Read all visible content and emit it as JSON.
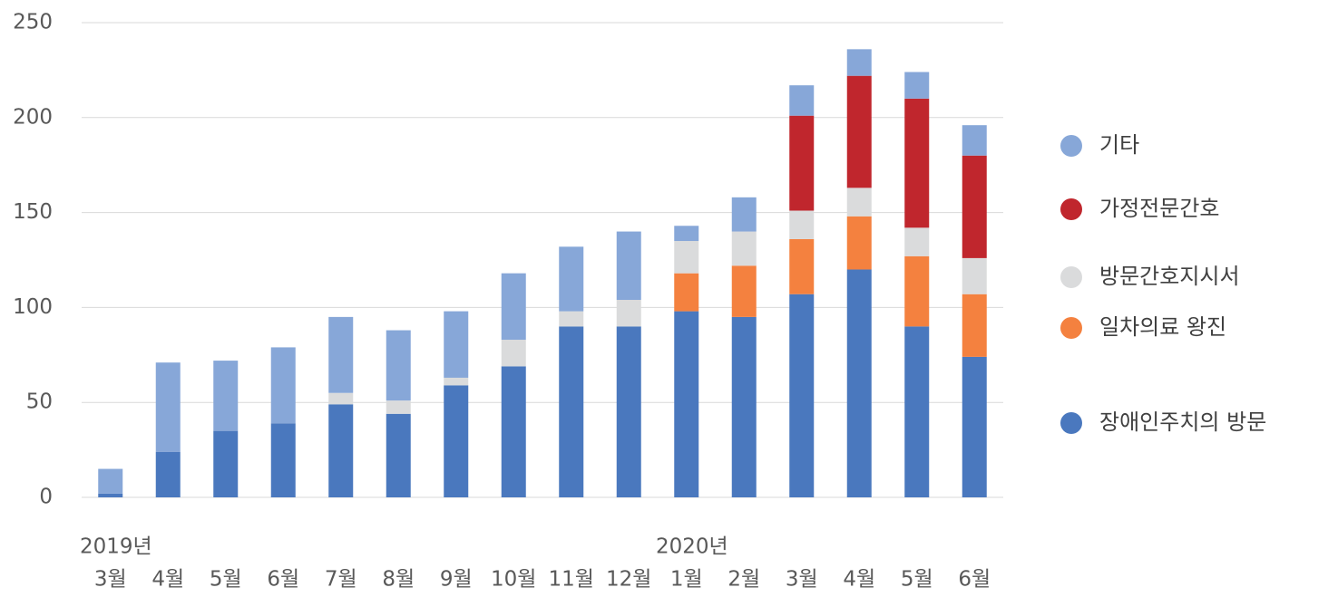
{
  "chart_data": {
    "type": "stacked_bar",
    "categories": [
      "3월",
      "4월",
      "5월",
      "6월",
      "7월",
      "8월",
      "9월",
      "10월",
      "11월",
      "12월",
      "1월",
      "2월",
      "3월",
      "4월",
      "5월",
      "6월"
    ],
    "year_labels": [
      "2019년",
      null,
      null,
      null,
      null,
      null,
      null,
      null,
      null,
      null,
      "2020년",
      null,
      null,
      null,
      null,
      null
    ],
    "series": [
      {
        "name": "장애인주치의 방문",
        "color": "#4a78be",
        "values": [
          2,
          24,
          35,
          39,
          49,
          44,
          59,
          69,
          90,
          90,
          98,
          95,
          107,
          120,
          90,
          74
        ]
      },
      {
        "name": "일차의료 왕진",
        "color": "#f4813f",
        "values": [
          0,
          0,
          0,
          0,
          0,
          0,
          0,
          0,
          0,
          0,
          20,
          27,
          29,
          28,
          37,
          33
        ]
      },
      {
        "name": "방문간호지시서",
        "color": "#dadbdc",
        "values": [
          0,
          0,
          0,
          0,
          6,
          7,
          4,
          14,
          8,
          14,
          17,
          18,
          15,
          15,
          15,
          19
        ]
      },
      {
        "name": "가정전문간호",
        "color": "#c0262d",
        "values": [
          0,
          0,
          0,
          0,
          0,
          0,
          0,
          0,
          0,
          0,
          0,
          0,
          50,
          59,
          68,
          54
        ]
      },
      {
        "name": "기타",
        "color": "#87a7d8",
        "values": [
          13,
          47,
          37,
          40,
          40,
          37,
          35,
          35,
          34,
          36,
          8,
          18,
          16,
          14,
          14,
          16
        ]
      }
    ],
    "ylim": [
      0,
      250
    ],
    "yticks": [
      0,
      50,
      100,
      150,
      200,
      250
    ],
    "grid": true,
    "legend": "right"
  }
}
